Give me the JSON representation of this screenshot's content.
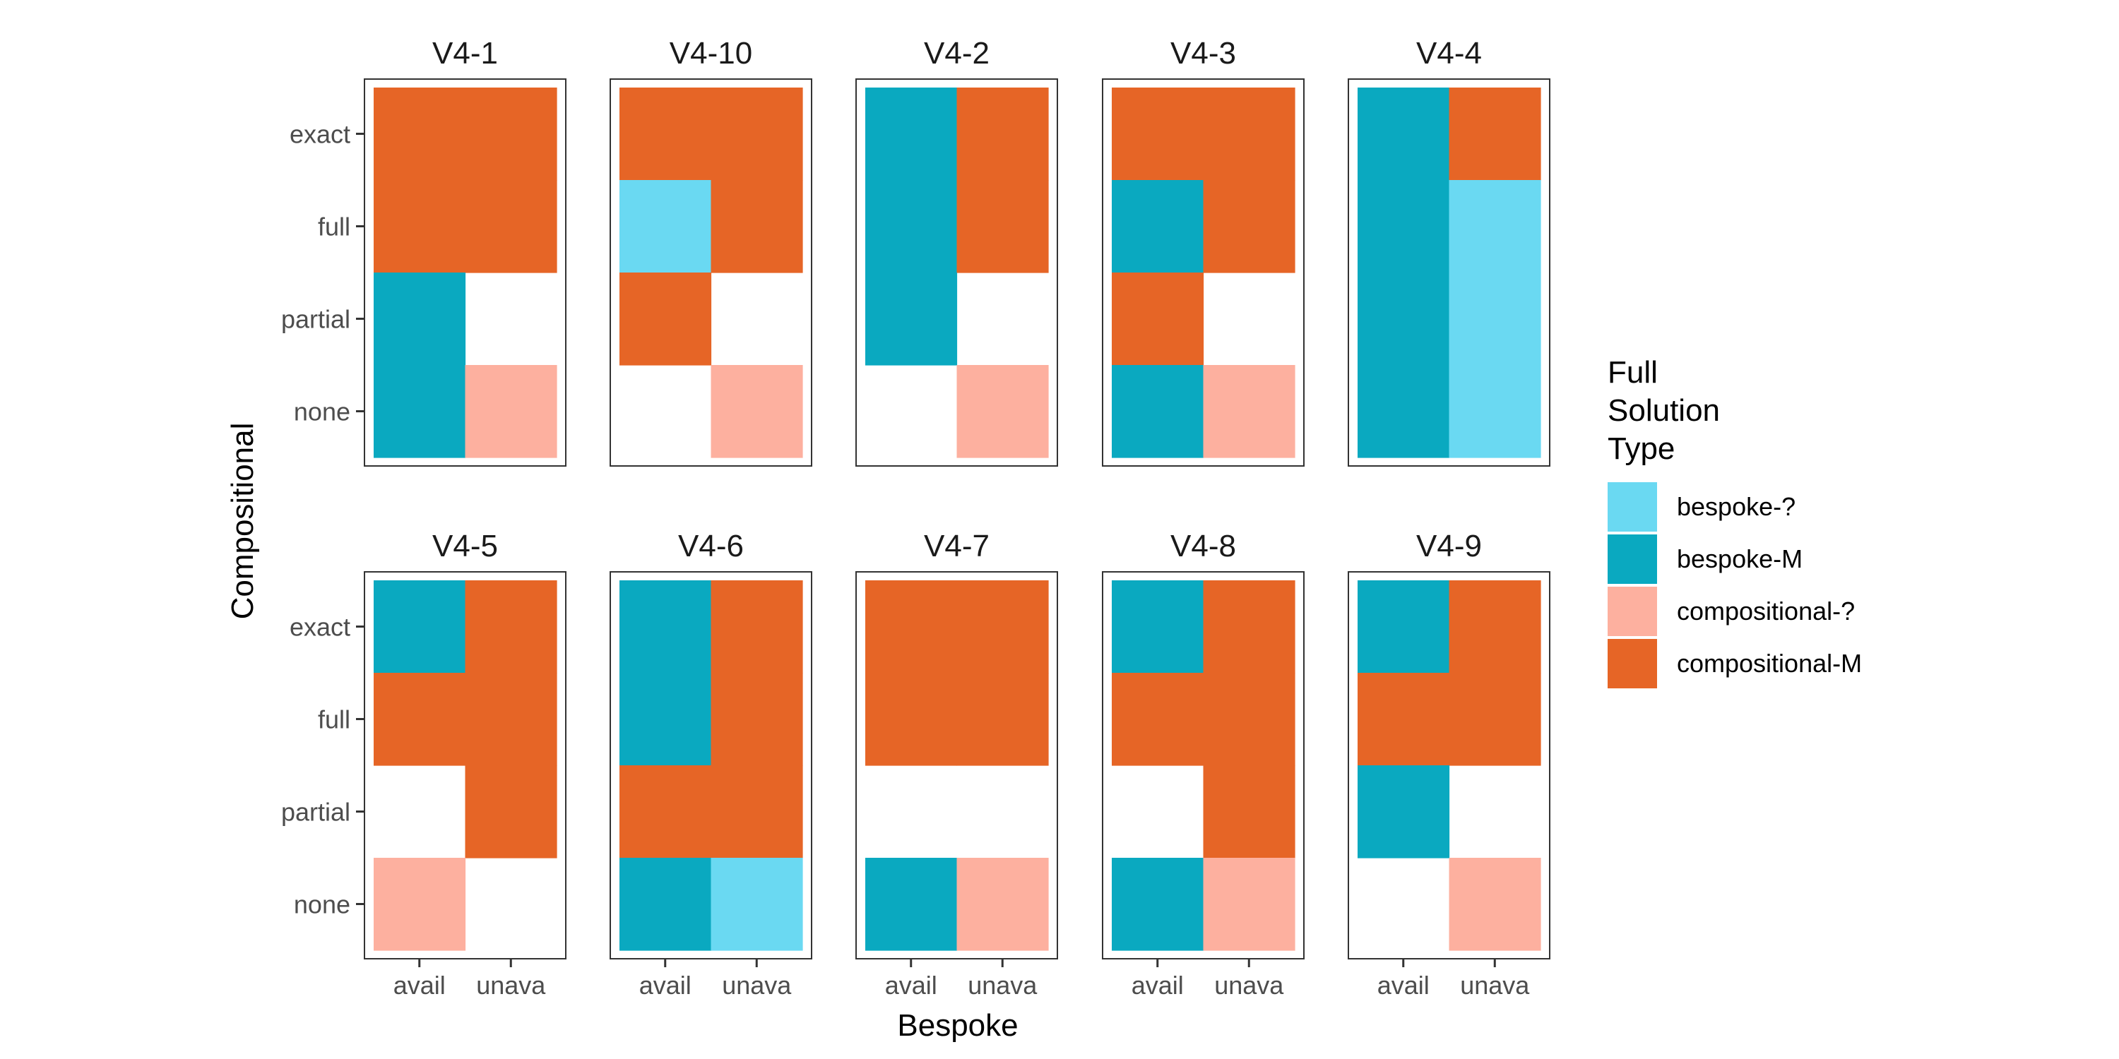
{
  "chart_data": {
    "type": "heatmap",
    "xlabel": "Bespoke",
    "ylabel": "Compositional",
    "x_categories": [
      "avail",
      "unava"
    ],
    "y_categories": [
      "exact",
      "full",
      "partial",
      "none"
    ],
    "legend": {
      "title_lines": [
        "Full",
        "Solution",
        "Type"
      ],
      "placement": "right",
      "entries": [
        {
          "key": "bespoke-?",
          "label": "bespoke-?",
          "color": "#6AD9F2"
        },
        {
          "key": "bespoke-M",
          "label": "bespoke-M",
          "color": "#0AA9C0"
        },
        {
          "key": "compositional-?",
          "label": "compositional-?",
          "color": "#FDB09F"
        },
        {
          "key": "compositional-M",
          "label": "compositional-M",
          "color": "#E66526"
        }
      ]
    },
    "panels": [
      {
        "title": "V4-1",
        "cells": [
          {
            "x": "avail",
            "y": "exact",
            "type": "compositional-M"
          },
          {
            "x": "unava",
            "y": "exact",
            "type": "compositional-M"
          },
          {
            "x": "avail",
            "y": "full",
            "type": "compositional-M"
          },
          {
            "x": "unava",
            "y": "full",
            "type": "compositional-M"
          },
          {
            "x": "avail",
            "y": "partial",
            "type": "bespoke-M"
          },
          {
            "x": "avail",
            "y": "none",
            "type": "bespoke-M"
          },
          {
            "x": "unava",
            "y": "none",
            "type": "compositional-?"
          }
        ]
      },
      {
        "title": "V4-10",
        "cells": [
          {
            "x": "avail",
            "y": "exact",
            "type": "compositional-M"
          },
          {
            "x": "unava",
            "y": "exact",
            "type": "compositional-M"
          },
          {
            "x": "avail",
            "y": "full",
            "type": "bespoke-?"
          },
          {
            "x": "unava",
            "y": "full",
            "type": "compositional-M"
          },
          {
            "x": "avail",
            "y": "partial",
            "type": "compositional-M"
          },
          {
            "x": "unava",
            "y": "none",
            "type": "compositional-?"
          }
        ]
      },
      {
        "title": "V4-2",
        "cells": [
          {
            "x": "avail",
            "y": "exact",
            "type": "bespoke-M"
          },
          {
            "x": "unava",
            "y": "exact",
            "type": "compositional-M"
          },
          {
            "x": "avail",
            "y": "full",
            "type": "bespoke-M"
          },
          {
            "x": "unava",
            "y": "full",
            "type": "compositional-M"
          },
          {
            "x": "avail",
            "y": "partial",
            "type": "bespoke-M"
          },
          {
            "x": "unava",
            "y": "none",
            "type": "compositional-?"
          }
        ]
      },
      {
        "title": "V4-3",
        "cells": [
          {
            "x": "avail",
            "y": "exact",
            "type": "compositional-M"
          },
          {
            "x": "unava",
            "y": "exact",
            "type": "compositional-M"
          },
          {
            "x": "avail",
            "y": "full",
            "type": "bespoke-M"
          },
          {
            "x": "unava",
            "y": "full",
            "type": "compositional-M"
          },
          {
            "x": "avail",
            "y": "partial",
            "type": "compositional-M"
          },
          {
            "x": "avail",
            "y": "none",
            "type": "bespoke-M"
          },
          {
            "x": "unava",
            "y": "none",
            "type": "compositional-?"
          }
        ]
      },
      {
        "title": "V4-4",
        "cells": [
          {
            "x": "avail",
            "y": "exact",
            "type": "bespoke-M"
          },
          {
            "x": "unava",
            "y": "exact",
            "type": "compositional-M"
          },
          {
            "x": "avail",
            "y": "full",
            "type": "bespoke-M"
          },
          {
            "x": "unava",
            "y": "full",
            "type": "bespoke-?"
          },
          {
            "x": "avail",
            "y": "partial",
            "type": "bespoke-M"
          },
          {
            "x": "unava",
            "y": "partial",
            "type": "bespoke-?"
          },
          {
            "x": "avail",
            "y": "none",
            "type": "bespoke-M"
          },
          {
            "x": "unava",
            "y": "none",
            "type": "bespoke-?"
          }
        ]
      },
      {
        "title": "V4-5",
        "cells": [
          {
            "x": "avail",
            "y": "exact",
            "type": "bespoke-M"
          },
          {
            "x": "unava",
            "y": "exact",
            "type": "compositional-M"
          },
          {
            "x": "avail",
            "y": "full",
            "type": "compositional-M"
          },
          {
            "x": "unava",
            "y": "full",
            "type": "compositional-M"
          },
          {
            "x": "unava",
            "y": "partial",
            "type": "compositional-M"
          },
          {
            "x": "avail",
            "y": "none",
            "type": "compositional-?"
          }
        ]
      },
      {
        "title": "V4-6",
        "cells": [
          {
            "x": "avail",
            "y": "exact",
            "type": "bespoke-M"
          },
          {
            "x": "unava",
            "y": "exact",
            "type": "compositional-M"
          },
          {
            "x": "avail",
            "y": "full",
            "type": "bespoke-M"
          },
          {
            "x": "unava",
            "y": "full",
            "type": "compositional-M"
          },
          {
            "x": "avail",
            "y": "partial",
            "type": "compositional-M"
          },
          {
            "x": "unava",
            "y": "partial",
            "type": "compositional-M"
          },
          {
            "x": "avail",
            "y": "none",
            "type": "bespoke-M"
          },
          {
            "x": "unava",
            "y": "none",
            "type": "bespoke-?"
          }
        ]
      },
      {
        "title": "V4-7",
        "cells": [
          {
            "x": "avail",
            "y": "exact",
            "type": "compositional-M"
          },
          {
            "x": "unava",
            "y": "exact",
            "type": "compositional-M"
          },
          {
            "x": "avail",
            "y": "full",
            "type": "compositional-M"
          },
          {
            "x": "unava",
            "y": "full",
            "type": "compositional-M"
          },
          {
            "x": "avail",
            "y": "none",
            "type": "bespoke-M"
          },
          {
            "x": "unava",
            "y": "none",
            "type": "compositional-?"
          }
        ]
      },
      {
        "title": "V4-8",
        "cells": [
          {
            "x": "avail",
            "y": "exact",
            "type": "bespoke-M"
          },
          {
            "x": "unava",
            "y": "exact",
            "type": "compositional-M"
          },
          {
            "x": "avail",
            "y": "full",
            "type": "compositional-M"
          },
          {
            "x": "unava",
            "y": "full",
            "type": "compositional-M"
          },
          {
            "x": "unava",
            "y": "partial",
            "type": "compositional-M"
          },
          {
            "x": "avail",
            "y": "none",
            "type": "bespoke-M"
          },
          {
            "x": "unava",
            "y": "none",
            "type": "compositional-?"
          }
        ]
      },
      {
        "title": "V4-9",
        "cells": [
          {
            "x": "avail",
            "y": "exact",
            "type": "bespoke-M"
          },
          {
            "x": "unava",
            "y": "exact",
            "type": "compositional-M"
          },
          {
            "x": "avail",
            "y": "full",
            "type": "compositional-M"
          },
          {
            "x": "unava",
            "y": "full",
            "type": "compositional-M"
          },
          {
            "x": "avail",
            "y": "partial",
            "type": "bespoke-M"
          },
          {
            "x": "unava",
            "y": "none",
            "type": "compositional-?"
          }
        ]
      }
    ]
  }
}
